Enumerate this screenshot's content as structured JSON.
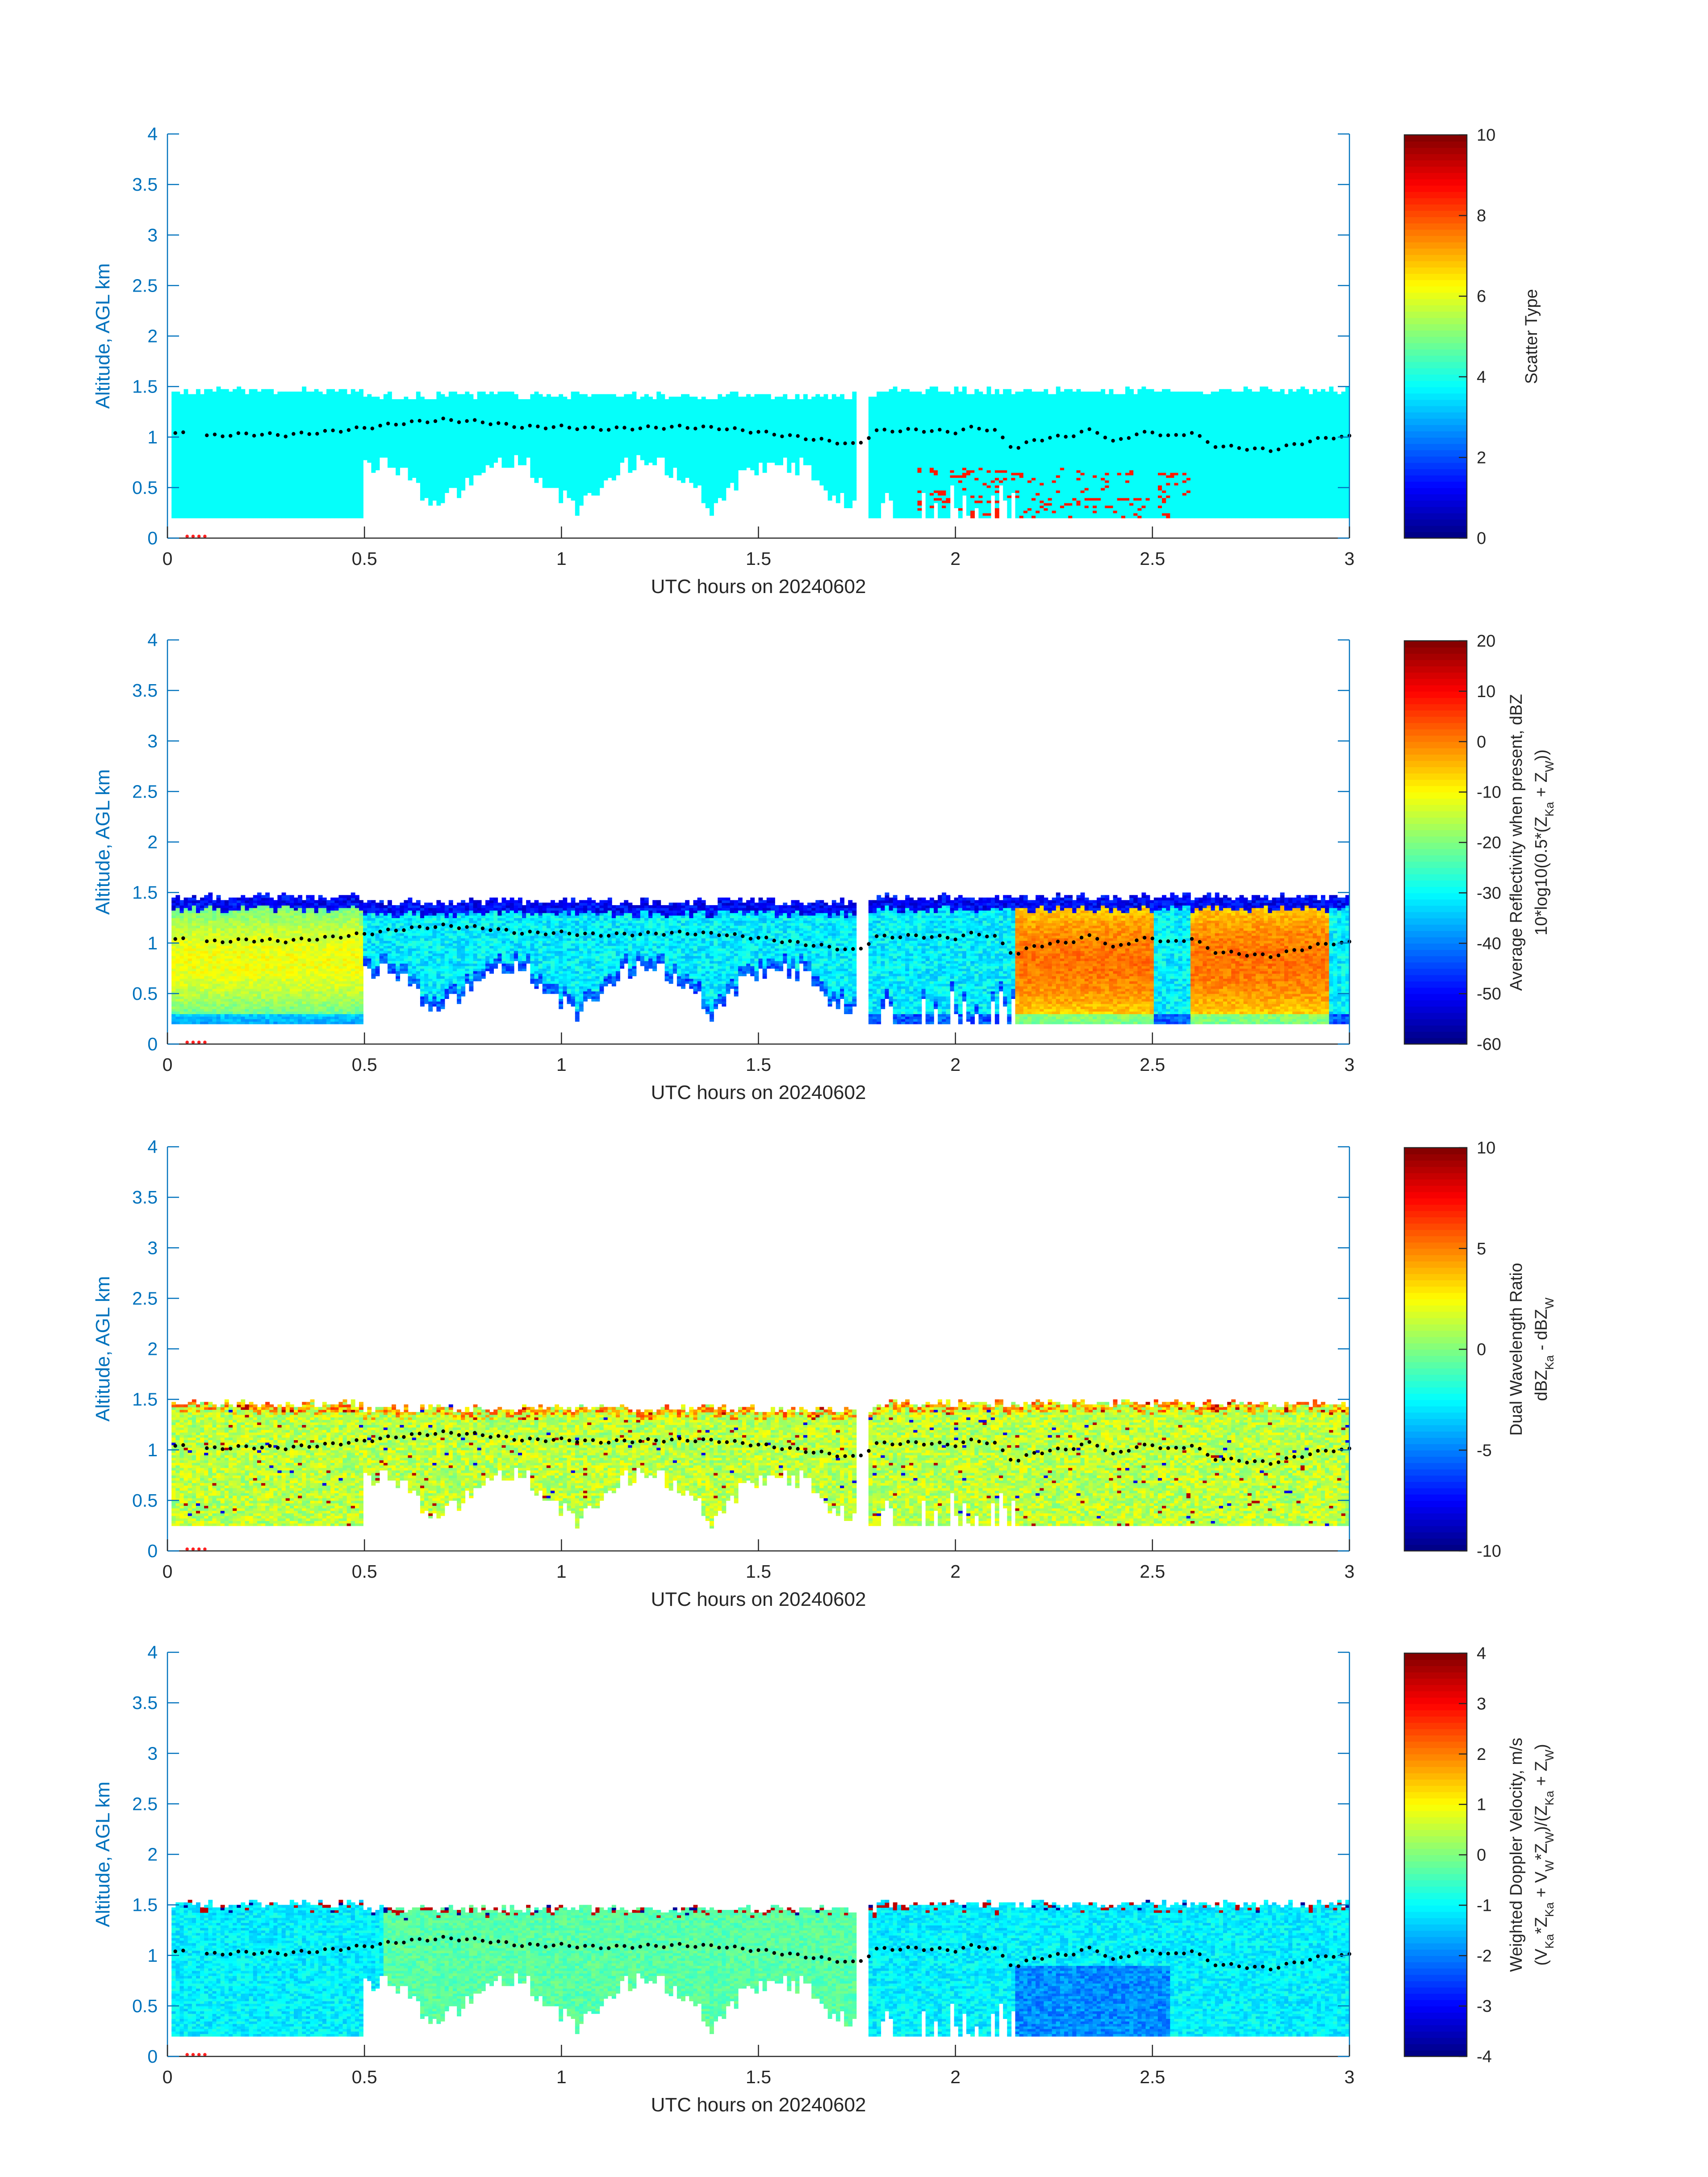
{
  "chart_data": [
    {
      "type": "heatmap",
      "xlabel": "UTC hours on 20240602",
      "ylabel": "Altitude, AGL km",
      "xlim": [
        0,
        3
      ],
      "ylim": [
        0,
        4
      ],
      "x_ticks": [
        "0",
        "0.5",
        "1",
        "1.5",
        "2",
        "2.5",
        "3"
      ],
      "y_ticks": [
        "0",
        "0.5",
        "1",
        "1.5",
        "2",
        "2.5",
        "3",
        "3.5",
        "4"
      ],
      "colormap": "jet",
      "colorbar": {
        "label_lines": [
          "Scatter Type"
        ],
        "range": [
          0,
          10
        ],
        "ticks": [
          "0",
          "2",
          "4",
          "6",
          "8",
          "10"
        ]
      },
      "field": {
        "kind": "scatter_type",
        "base_value": 3.8,
        "spot_value": 8.5,
        "top_km": 1.5,
        "bottom_km": 0.2
      }
    },
    {
      "type": "heatmap",
      "xlabel": "UTC hours on 20240602",
      "ylabel": "Altitude, AGL km",
      "xlim": [
        0,
        3
      ],
      "ylim": [
        0,
        4
      ],
      "x_ticks": [
        "0",
        "0.5",
        "1",
        "1.5",
        "2",
        "2.5",
        "3"
      ],
      "y_ticks": [
        "0",
        "0.5",
        "1",
        "1.5",
        "2",
        "2.5",
        "3",
        "3.5",
        "4"
      ],
      "colormap": "jet",
      "colorbar": {
        "label_lines": [
          "Average Reflectivity when present, dBZ",
          "10*log10(0.5*(Z_Ka + Z_W))"
        ],
        "range": [
          -60,
          20
        ],
        "ticks": [
          "-60",
          "-50",
          "-40",
          "-30",
          "-20",
          "-10",
          "0",
          "10",
          "20"
        ]
      },
      "field": {
        "kind": "reflectivity",
        "top_km": 1.5,
        "bottom_km": 0.2
      }
    },
    {
      "type": "heatmap",
      "xlabel": "UTC hours on 20240602",
      "ylabel": "Altitude, AGL km",
      "xlim": [
        0,
        3
      ],
      "ylim": [
        0,
        4
      ],
      "x_ticks": [
        "0",
        "0.5",
        "1",
        "1.5",
        "2",
        "2.5",
        "3"
      ],
      "y_ticks": [
        "0",
        "0.5",
        "1",
        "1.5",
        "2",
        "2.5",
        "3",
        "3.5",
        "4"
      ],
      "colormap": "jet",
      "colorbar": {
        "label_lines": [
          "Dual Wavelength Ratio",
          "dBZ_Ka - dBZ_W"
        ],
        "range": [
          -10,
          10
        ],
        "ticks": [
          "-10",
          "-5",
          "0",
          "5",
          "10"
        ]
      },
      "field": {
        "kind": "dwr",
        "top_km": 1.5,
        "bottom_km": 0.25
      }
    },
    {
      "type": "heatmap",
      "xlabel": "UTC hours on 20240602",
      "ylabel": "Altitude, AGL km",
      "xlim": [
        0,
        3
      ],
      "ylim": [
        0,
        4
      ],
      "x_ticks": [
        "0",
        "0.5",
        "1",
        "1.5",
        "2",
        "2.5",
        "3"
      ],
      "y_ticks": [
        "0",
        "0.5",
        "1",
        "1.5",
        "2",
        "2.5",
        "3",
        "3.5",
        "4"
      ],
      "colormap": "jet",
      "colorbar": {
        "label_lines": [
          "Weighted Doppler Velocity, m/s",
          "(V_Ka*Z_Ka + V_W*Z_W)/(Z_Ka + Z_W)"
        ],
        "range": [
          -4,
          4
        ],
        "ticks": [
          "-4",
          "-3",
          "-2",
          "-1",
          "0",
          "1",
          "2",
          "3",
          "4"
        ]
      },
      "field": {
        "kind": "velocity",
        "top_km": 1.55,
        "bottom_km": 0.2
      }
    }
  ],
  "cloud_base_km": {
    "x": [
      0.02,
      0.1,
      0.2,
      0.3,
      0.4,
      0.5,
      0.6,
      0.7,
      0.8,
      0.9,
      1.0,
      1.1,
      1.2,
      1.3,
      1.4,
      1.5,
      1.6,
      1.7,
      1.75,
      1.8,
      1.9,
      2.0,
      2.05,
      2.1,
      2.15,
      2.2,
      2.3,
      2.35,
      2.4,
      2.45,
      2.5,
      2.55,
      2.6,
      2.65,
      2.7,
      2.8,
      2.9,
      2.95,
      3.0
    ],
    "y": [
      1.04,
      1.01,
      1.03,
      1.02,
      1.05,
      1.09,
      1.14,
      1.17,
      1.15,
      1.1,
      1.1,
      1.08,
      1.09,
      1.1,
      1.09,
      1.05,
      1.0,
      0.95,
      0.92,
      1.06,
      1.07,
      1.05,
      1.1,
      1.06,
      0.88,
      0.97,
      1.02,
      1.08,
      0.95,
      1.02,
      1.05,
      1.0,
      1.05,
      0.92,
      0.9,
      0.87,
      0.96,
      1.0,
      1.0
    ]
  },
  "marker_color": "#ff2020"
}
